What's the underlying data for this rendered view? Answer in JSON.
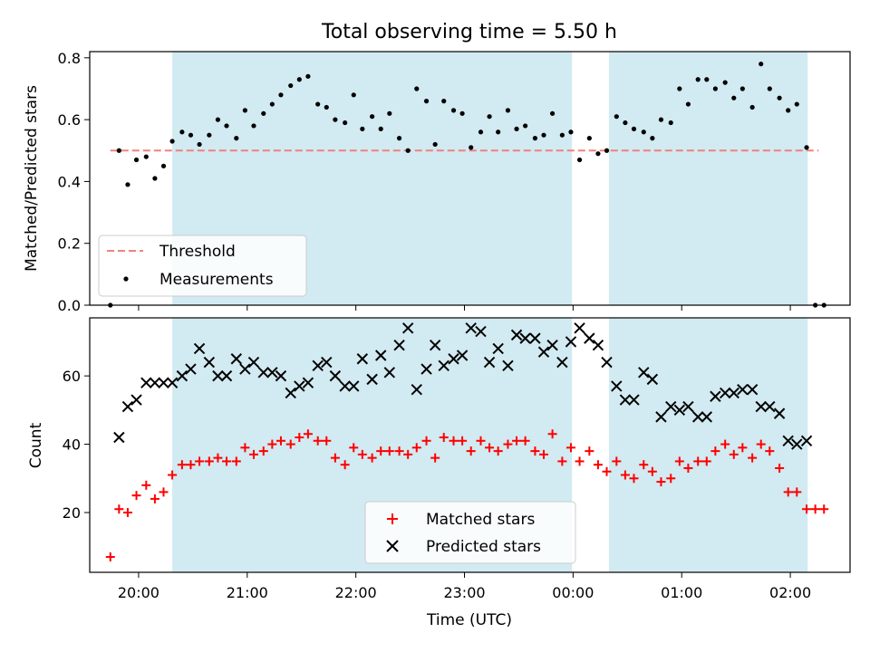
{
  "title": "Total observing time = 5.50 h",
  "colors": {
    "shade": "#add8e6",
    "threshold": "#f08080",
    "measurement": "#000000",
    "matched": "#ff0000",
    "predicted": "#000000"
  },
  "chart_data": [
    {
      "type": "scatter",
      "ylabel": "Matched/Predicted stars",
      "ylim": [
        0,
        0.82
      ],
      "yticks": [
        0.0,
        0.2,
        0.4,
        0.6,
        0.8
      ],
      "ytick_labels": [
        "0.0",
        "0.2",
        "0.4",
        "0.6",
        "0.8"
      ],
      "xticks": [
        "20:00",
        "21:00",
        "22:00",
        "23:00",
        "00:00",
        "01:00",
        "02:00"
      ],
      "xlim": [
        -0.45,
        6.55
      ],
      "grid": false,
      "legend_position": "lower-left",
      "shaded_intervals": [
        [
          0.31,
          3.99
        ],
        [
          4.33,
          6.16
        ]
      ],
      "threshold": {
        "name": "Threshold",
        "y": 0.5,
        "x_range": [
          -0.26,
          6.26
        ]
      },
      "series": [
        {
          "name": "Measurements",
          "x": [
            -0.26,
            -0.18,
            -0.1,
            -0.02,
            0.07,
            0.15,
            0.23,
            0.31,
            0.4,
            0.48,
            0.56,
            0.65,
            0.73,
            0.81,
            0.9,
            0.98,
            1.06,
            1.15,
            1.23,
            1.31,
            1.4,
            1.48,
            1.56,
            1.65,
            1.73,
            1.81,
            1.9,
            1.98,
            2.06,
            2.15,
            2.23,
            2.31,
            2.4,
            2.48,
            2.56,
            2.65,
            2.73,
            2.81,
            2.9,
            2.98,
            3.06,
            3.15,
            3.23,
            3.31,
            3.4,
            3.48,
            3.56,
            3.65,
            3.73,
            3.81,
            3.9,
            3.98,
            4.06,
            4.15,
            4.23,
            4.31,
            4.4,
            4.48,
            4.56,
            4.65,
            4.73,
            4.81,
            4.9,
            4.98,
            5.06,
            5.15,
            5.23,
            5.31,
            5.4,
            5.48,
            5.56,
            5.65,
            5.73,
            5.81,
            5.9,
            5.98,
            6.06,
            6.15,
            6.23,
            6.31
          ],
          "y": [
            0.0,
            0.5,
            0.39,
            0.47,
            0.48,
            0.41,
            0.45,
            0.53,
            0.56,
            0.55,
            0.52,
            0.55,
            0.6,
            0.58,
            0.54,
            0.63,
            0.58,
            0.62,
            0.65,
            0.68,
            0.71,
            0.73,
            0.74,
            0.65,
            0.64,
            0.6,
            0.59,
            0.68,
            0.57,
            0.61,
            0.57,
            0.62,
            0.54,
            0.5,
            0.7,
            0.66,
            0.52,
            0.66,
            0.63,
            0.62,
            0.51,
            0.56,
            0.61,
            0.56,
            0.63,
            0.57,
            0.58,
            0.54,
            0.55,
            0.62,
            0.55,
            0.56,
            0.47,
            0.54,
            0.49,
            0.5,
            0.61,
            0.59,
            0.57,
            0.56,
            0.54,
            0.6,
            0.59,
            0.7,
            0.65,
            0.73,
            0.73,
            0.7,
            0.72,
            0.67,
            0.7,
            0.64,
            0.78,
            0.7,
            0.67,
            0.63,
            0.65,
            0.51,
            0.0,
            0.0
          ]
        }
      ]
    },
    {
      "type": "scatter",
      "ylabel": "Count",
      "xlabel": "Time (UTC)",
      "ylim": [
        2.5,
        77
      ],
      "yticks": [
        20,
        40,
        60
      ],
      "ytick_labels": [
        "20",
        "40",
        "60"
      ],
      "xticks": [
        "20:00",
        "21:00",
        "22:00",
        "23:00",
        "00:00",
        "01:00",
        "02:00"
      ],
      "xlim": [
        -0.45,
        6.55
      ],
      "grid": false,
      "legend_position": "lower-center",
      "shaded_intervals": [
        [
          0.31,
          3.99
        ],
        [
          4.33,
          6.16
        ]
      ],
      "series": [
        {
          "name": "Matched stars",
          "marker": "plus",
          "x": [
            -0.26,
            -0.18,
            -0.1,
            -0.02,
            0.07,
            0.15,
            0.23,
            0.31,
            0.4,
            0.48,
            0.56,
            0.65,
            0.73,
            0.81,
            0.9,
            0.98,
            1.06,
            1.15,
            1.23,
            1.31,
            1.4,
            1.48,
            1.56,
            1.65,
            1.73,
            1.81,
            1.9,
            1.98,
            2.06,
            2.15,
            2.23,
            2.31,
            2.4,
            2.48,
            2.56,
            2.65,
            2.73,
            2.81,
            2.9,
            2.98,
            3.06,
            3.15,
            3.23,
            3.31,
            3.4,
            3.48,
            3.56,
            3.65,
            3.73,
            3.81,
            3.9,
            3.98,
            4.06,
            4.15,
            4.23,
            4.31,
            4.4,
            4.48,
            4.56,
            4.65,
            4.73,
            4.81,
            4.9,
            4.98,
            5.06,
            5.15,
            5.23,
            5.31,
            5.4,
            5.48,
            5.56,
            5.65,
            5.73,
            5.81,
            5.9,
            5.98,
            6.06,
            6.15,
            6.23,
            6.31
          ],
          "y": [
            7,
            21,
            20,
            25,
            28,
            24,
            26,
            31,
            34,
            34,
            35,
            35,
            36,
            35,
            35,
            39,
            37,
            38,
            40,
            41,
            40,
            42,
            43,
            41,
            41,
            36,
            34,
            39,
            37,
            36,
            38,
            38,
            38,
            37,
            39,
            41,
            36,
            42,
            41,
            41,
            38,
            41,
            39,
            38,
            40,
            41,
            41,
            38,
            37,
            43,
            35,
            39,
            35,
            38,
            34,
            32,
            35,
            31,
            30,
            34,
            32,
            29,
            30,
            35,
            33,
            35,
            35,
            38,
            40,
            37,
            39,
            36,
            40,
            38,
            33,
            26,
            26,
            21,
            21,
            21
          ]
        },
        {
          "name": "Predicted stars",
          "marker": "x",
          "x": [
            -0.18,
            -0.1,
            -0.02,
            0.07,
            0.15,
            0.23,
            0.31,
            0.4,
            0.48,
            0.56,
            0.65,
            0.73,
            0.81,
            0.9,
            0.98,
            1.06,
            1.15,
            1.23,
            1.31,
            1.4,
            1.48,
            1.56,
            1.65,
            1.73,
            1.81,
            1.9,
            1.98,
            2.06,
            2.15,
            2.23,
            2.31,
            2.4,
            2.48,
            2.56,
            2.65,
            2.73,
            2.81,
            2.9,
            2.98,
            3.06,
            3.15,
            3.23,
            3.31,
            3.4,
            3.48,
            3.56,
            3.65,
            3.73,
            3.81,
            3.9,
            3.98,
            4.06,
            4.15,
            4.23,
            4.31,
            4.4,
            4.48,
            4.56,
            4.65,
            4.73,
            4.81,
            4.9,
            4.98,
            5.06,
            5.15,
            5.23,
            5.31,
            5.4,
            5.48,
            5.56,
            5.65,
            5.73,
            5.81,
            5.9,
            5.98,
            6.06,
            6.15
          ],
          "y": [
            42,
            51,
            53,
            58,
            58,
            58,
            58,
            60,
            62,
            68,
            64,
            60,
            60,
            65,
            62,
            64,
            61,
            61,
            60,
            55,
            57,
            58,
            63,
            64,
            60,
            57,
            57,
            65,
            59,
            66,
            61,
            69,
            74,
            56,
            62,
            69,
            63,
            65,
            66,
            74,
            73,
            64,
            68,
            63,
            72,
            71,
            71,
            67,
            69,
            64,
            70,
            74,
            71,
            69,
            64,
            57,
            53,
            53,
            61,
            59,
            48,
            51,
            50,
            51,
            48,
            48,
            54,
            55,
            55,
            56,
            56,
            51,
            51,
            49,
            41,
            40,
            41
          ]
        }
      ]
    }
  ]
}
